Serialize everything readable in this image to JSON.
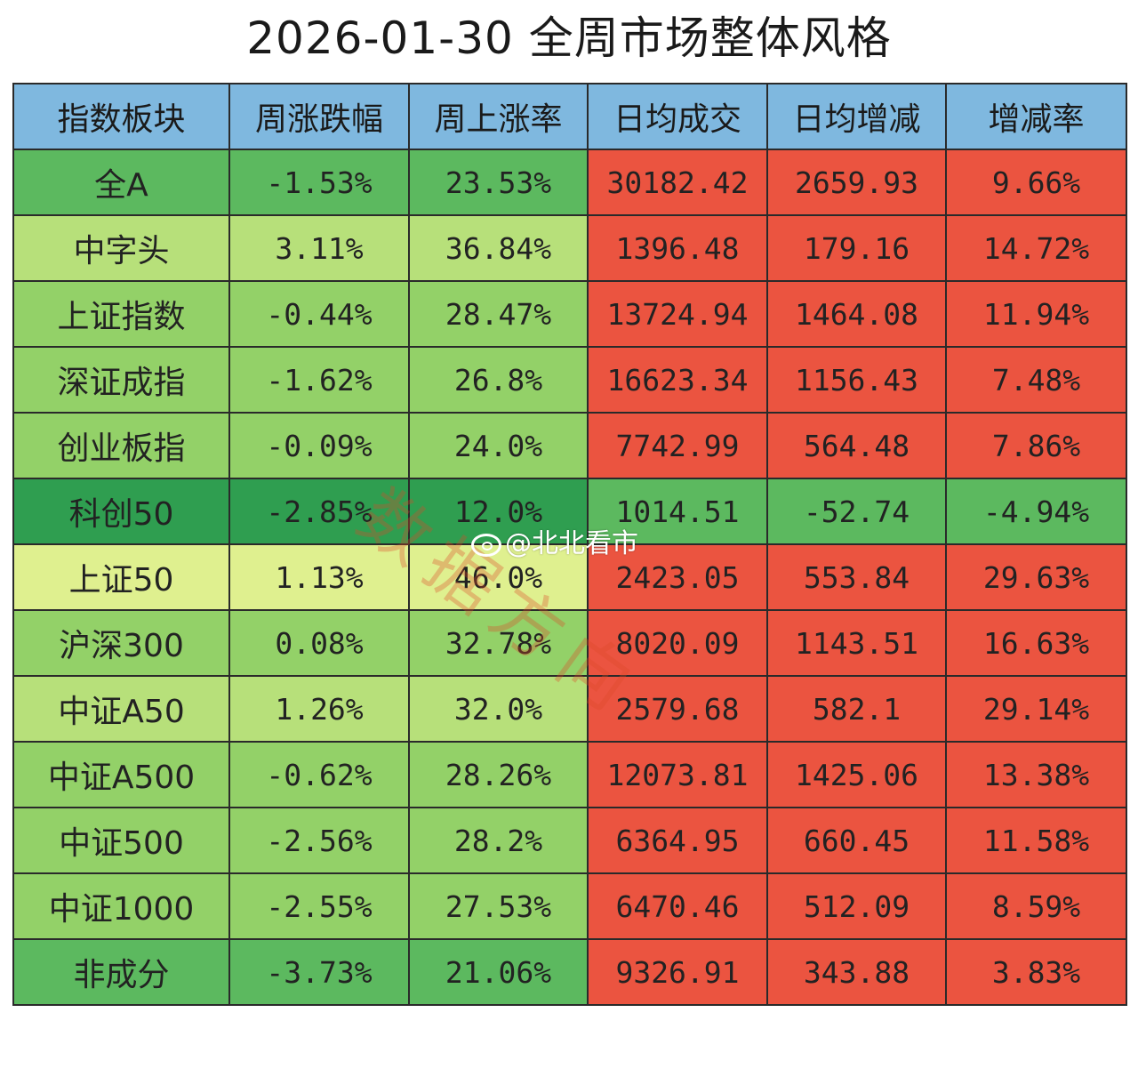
{
  "title": "2026-01-30  全周市场整体风格",
  "colors": {
    "header": "#7fb8df",
    "green_dark": "#2f9e50",
    "green_mid": "#5cb95f",
    "green_light": "#93d168",
    "green_lighter": "#b7e07a",
    "green_pale": "#dff08f",
    "red": "#eb5440"
  },
  "table": {
    "headers": [
      "指数板块",
      "周涨跌幅",
      "周上涨率",
      "日均成交",
      "日均增减",
      "增减率"
    ],
    "rows": [
      {
        "name": "全A",
        "cells": [
          "-1.53%",
          "23.53%",
          "30182.42",
          "2659.93",
          "9.66%"
        ],
        "c1": "green_mid",
        "c3": "red"
      },
      {
        "name": "中字头",
        "cells": [
          "3.11%",
          "36.84%",
          "1396.48",
          "179.16",
          "14.72%"
        ],
        "c1": "green_lighter",
        "c3": "red"
      },
      {
        "name": "上证指数",
        "cells": [
          "-0.44%",
          "28.47%",
          "13724.94",
          "1464.08",
          "11.94%"
        ],
        "c1": "green_light",
        "c3": "red"
      },
      {
        "name": "深证成指",
        "cells": [
          "-1.62%",
          "26.8%",
          "16623.34",
          "1156.43",
          "7.48%"
        ],
        "c1": "green_light",
        "c3": "red"
      },
      {
        "name": "创业板指",
        "cells": [
          "-0.09%",
          "24.0%",
          "7742.99",
          "564.48",
          "7.86%"
        ],
        "c1": "green_light",
        "c3": "red"
      },
      {
        "name": "科创50",
        "cells": [
          "-2.85%",
          "12.0%",
          "1014.51",
          "-52.74",
          "-4.94%"
        ],
        "c1": "green_dark",
        "c3": "green_mid"
      },
      {
        "name": "上证50",
        "cells": [
          "1.13%",
          "46.0%",
          "2423.05",
          "553.84",
          "29.63%"
        ],
        "c1": "green_pale",
        "c3": "red"
      },
      {
        "name": "沪深300",
        "cells": [
          "0.08%",
          "32.78%",
          "8020.09",
          "1143.51",
          "16.63%"
        ],
        "c1": "green_light",
        "c3": "red"
      },
      {
        "name": "中证A50",
        "cells": [
          "1.26%",
          "32.0%",
          "2579.68",
          "582.1",
          "29.14%"
        ],
        "c1": "green_lighter",
        "c3": "red"
      },
      {
        "name": "中证A500",
        "cells": [
          "-0.62%",
          "28.26%",
          "12073.81",
          "1425.06",
          "13.38%"
        ],
        "c1": "green_light",
        "c3": "red"
      },
      {
        "name": "中证500",
        "cells": [
          "-2.56%",
          "28.2%",
          "6364.95",
          "660.45",
          "11.58%"
        ],
        "c1": "green_light",
        "c3": "red"
      },
      {
        "name": "中证1000",
        "cells": [
          "-2.55%",
          "27.53%",
          "6470.46",
          "512.09",
          "8.59%"
        ],
        "c1": "green_light",
        "c3": "red"
      },
      {
        "name": "非成分",
        "cells": [
          "-3.73%",
          "21.06%",
          "9326.91",
          "343.88",
          "3.83%"
        ],
        "c1": "green_mid",
        "c3": "red"
      }
    ]
  },
  "watermark": "数据方向",
  "weibo_handle": "@北北看市",
  "icons": {
    "weibo": "weibo-logo-icon"
  }
}
